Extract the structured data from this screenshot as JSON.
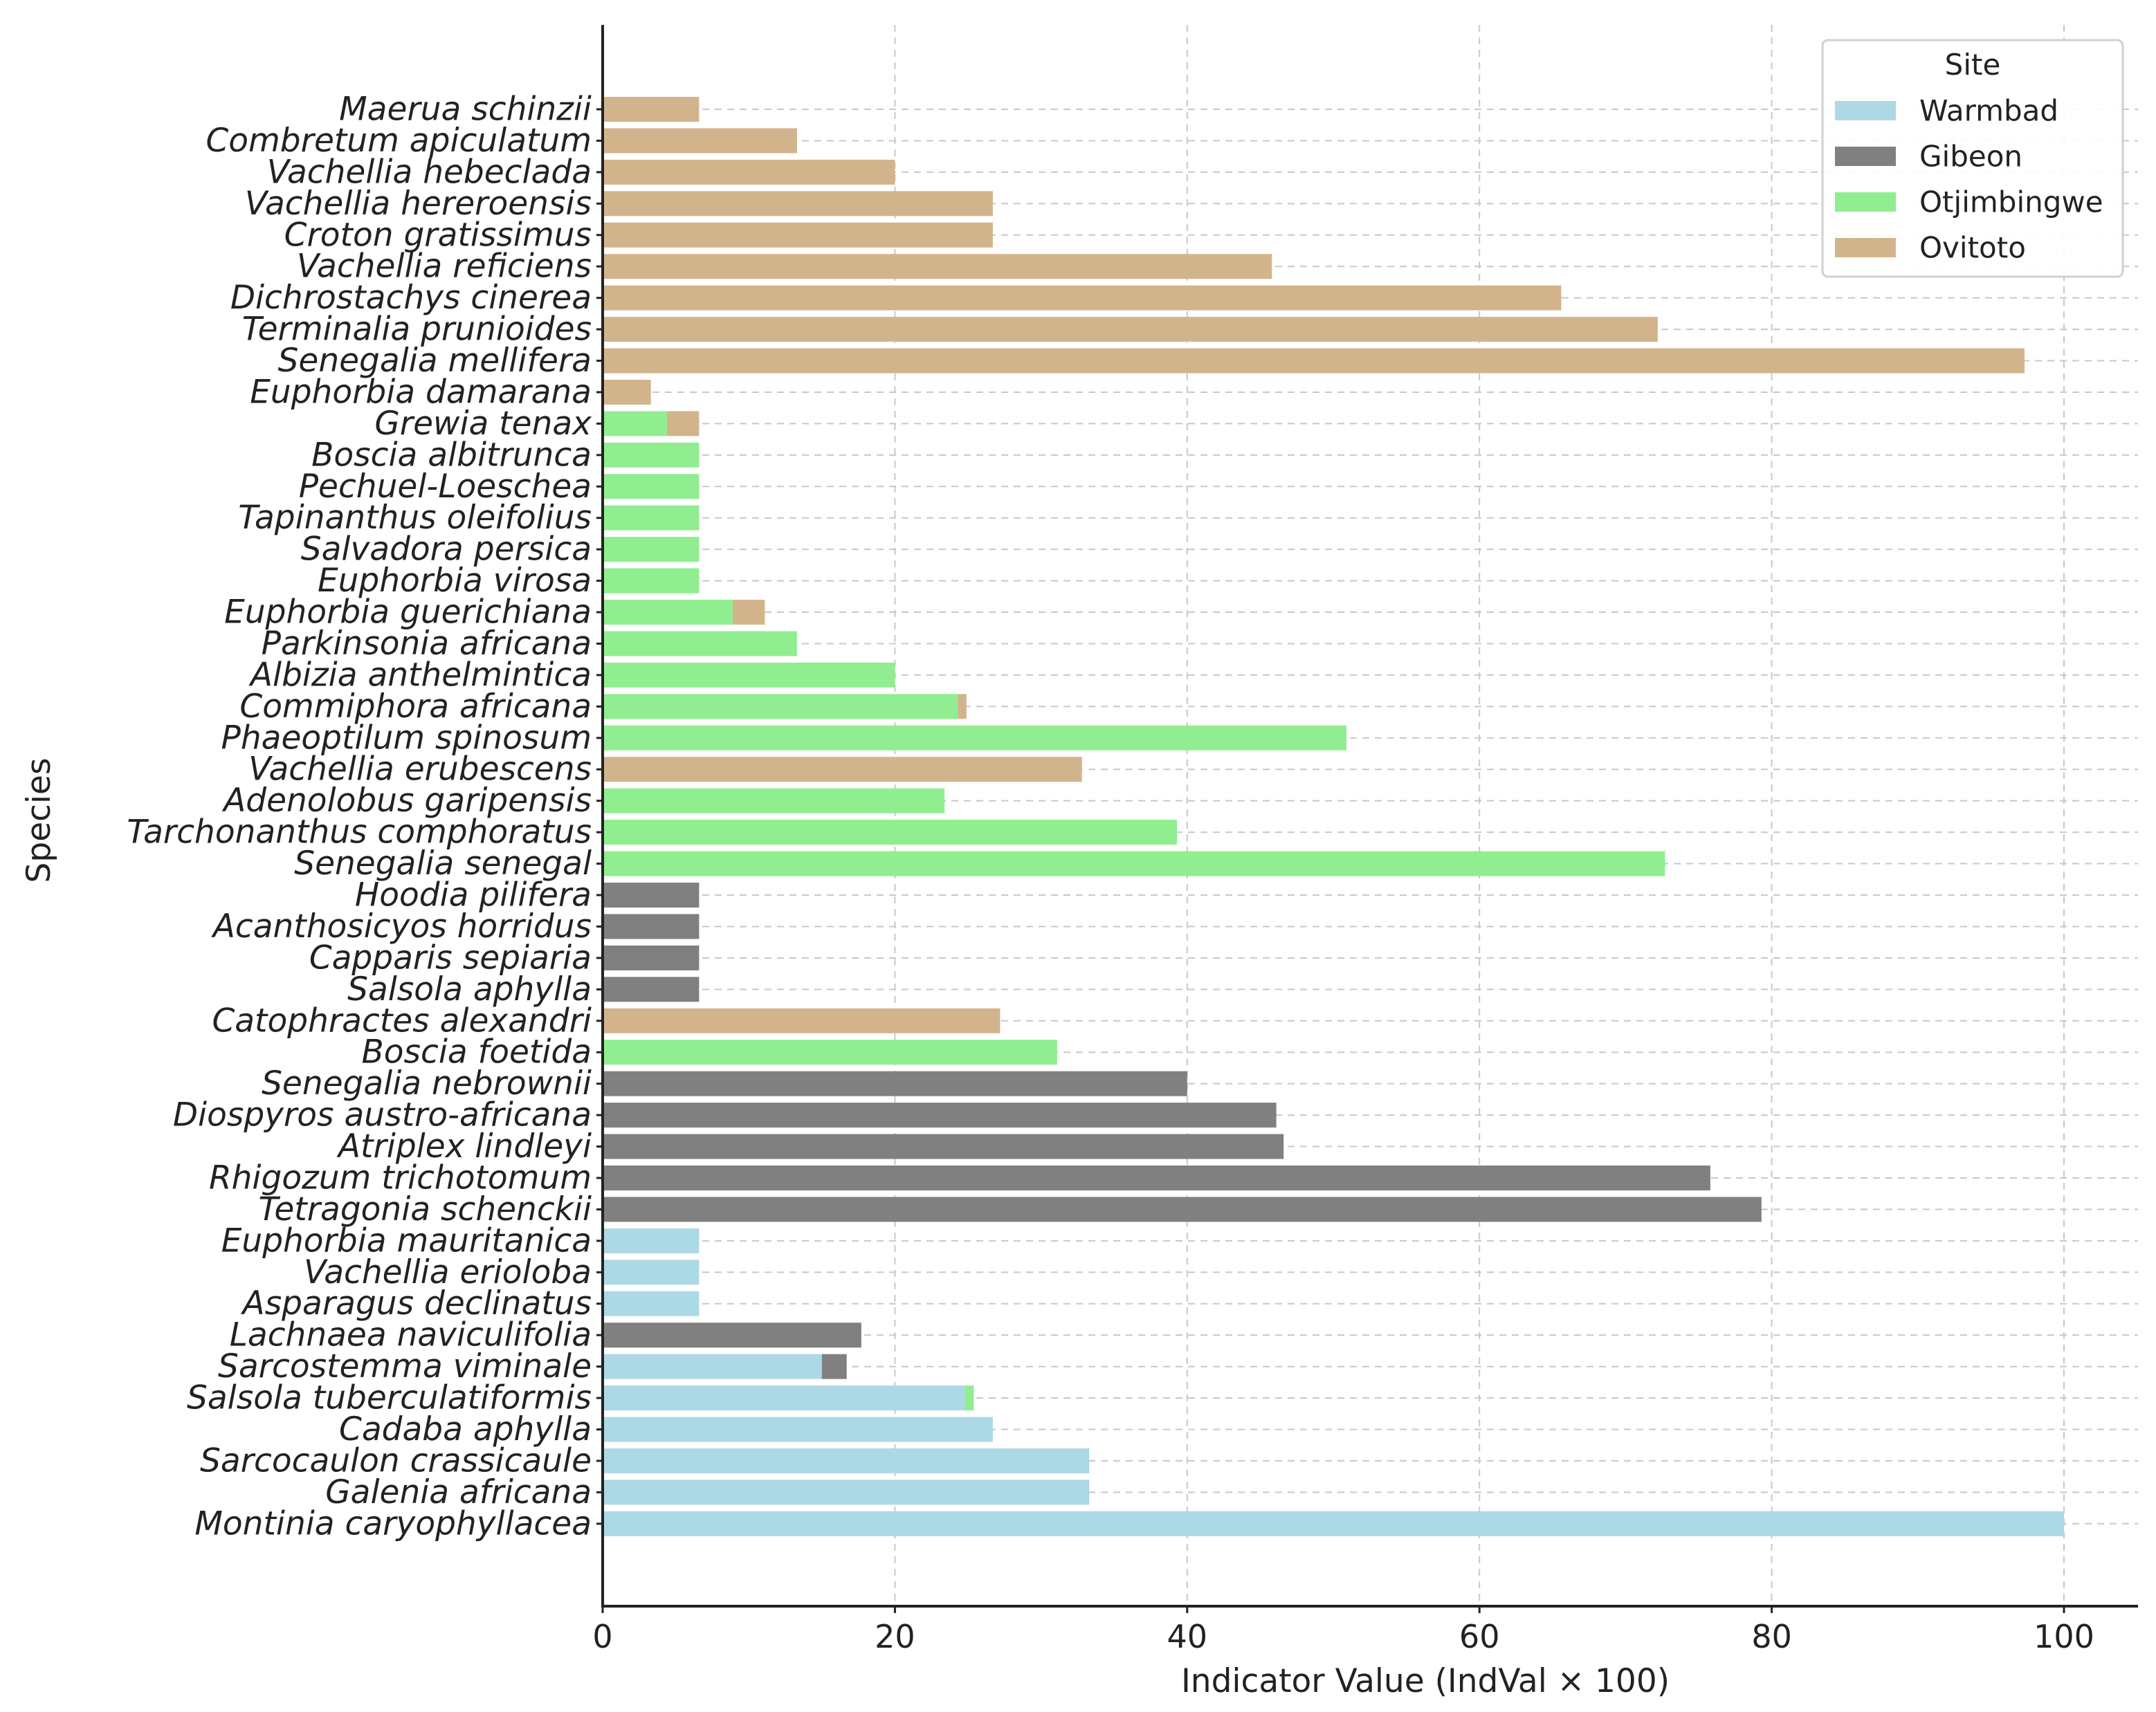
{
  "chart_data": {
    "type": "bar",
    "orientation": "horizontal",
    "stacked": true,
    "title": "",
    "xlabel": "Indicator Value (IndVal × 100)",
    "ylabel": "Species",
    "xlim": [
      0,
      105
    ],
    "xticks": [
      0,
      20,
      40,
      60,
      80,
      100
    ],
    "grid": true,
    "legend": {
      "title": "Site",
      "position": "top-right",
      "entries": [
        {
          "name": "Warmbad",
          "color": "#add8e6"
        },
        {
          "name": "Gibeon",
          "color": "#808080"
        },
        {
          "name": "Otjimbingwe",
          "color": "#90ee90"
        },
        {
          "name": "Ovitoto",
          "color": "#d2b48c"
        }
      ]
    },
    "categories": [
      "Maerua schinzii",
      "Combretum apiculatum",
      "Vachellia hebeclada",
      "Vachellia hereroensis",
      "Croton gratissimus",
      "Vachellia reficiens",
      "Dichrostachys cinerea",
      "Terminalia prunioides",
      "Senegalia mellifera",
      "Euphorbia damarana",
      "Grewia tenax",
      "Boscia albitrunca",
      "Pechuel-Loeschea",
      "Tapinanthus oleifolius",
      "Salvadora persica",
      "Euphorbia virosa",
      "Euphorbia guerichiana",
      "Parkinsonia africana",
      "Albizia anthelmintica",
      "Commiphora africana",
      "Phaeoptilum spinosum",
      "Vachellia erubescens",
      "Adenolobus garipensis",
      "Tarchonanthus comphoratus",
      "Senegalia senegal",
      "Hoodia pilifera",
      "Acanthosicyos horridus",
      "Capparis sepiaria",
      "Salsola aphylla",
      "Catophractes alexandri",
      "Boscia foetida",
      "Senegalia nebrownii",
      "Diospyros austro-africana",
      "Atriplex lindleyi",
      "Rhigozum trichotomum",
      "Tetragonia schenckii",
      "Euphorbia mauritanica",
      "Vachellia erioloba",
      "Asparagus declinatus",
      "Lachnaea naviculifolia",
      "Sarcostemma viminale",
      "Salsola tuberculatiformis",
      "Cadaba aphylla",
      "Sarcocaulon crassicaule",
      "Galenia africana",
      "Montinia caryophyllacea"
    ],
    "series": [
      {
        "name": "Warmbad",
        "values": [
          0,
          0,
          0,
          0,
          0,
          0,
          0,
          0,
          0,
          0,
          0,
          0,
          0,
          0,
          0,
          0,
          0,
          0,
          0,
          0,
          0,
          0,
          0,
          0,
          0,
          0,
          0,
          0,
          0,
          0,
          0,
          0,
          0,
          0,
          0,
          0,
          6.6,
          6.6,
          6.6,
          0,
          15,
          24.8,
          26.7,
          33.3,
          33.3,
          100
        ]
      },
      {
        "name": "Gibeon",
        "values": [
          0,
          0,
          0,
          0,
          0,
          0,
          0,
          0,
          0,
          0,
          0,
          0,
          0,
          0,
          0,
          0,
          0,
          0,
          0,
          0,
          0,
          0,
          0,
          0,
          0,
          6.6,
          6.6,
          6.6,
          6.6,
          0,
          0,
          40,
          46.1,
          46.6,
          75.8,
          79.3,
          0,
          0,
          0,
          17.7,
          1.7,
          0,
          0,
          0,
          0,
          0
        ]
      },
      {
        "name": "Otjimbingwe",
        "values": [
          0,
          0,
          0,
          0,
          0,
          0,
          0,
          0,
          0,
          0,
          4.4,
          6.6,
          6.6,
          6.6,
          6.6,
          6.6,
          8.9,
          13.3,
          20,
          24.3,
          50.9,
          0,
          23.4,
          39.3,
          72.7,
          0,
          0,
          0,
          0,
          0,
          31.1,
          0,
          0,
          0,
          0,
          0,
          0,
          0,
          0,
          0,
          0,
          0.6,
          0,
          0,
          0,
          0
        ]
      },
      {
        "name": "Ovitoto",
        "values": [
          6.6,
          13.3,
          20,
          26.7,
          26.7,
          45.8,
          65.6,
          72.2,
          97.3,
          3.3,
          2.2,
          0,
          0,
          0,
          0,
          0,
          2.2,
          0,
          0,
          0.6,
          0,
          32.8,
          0,
          0,
          0,
          0,
          0,
          0,
          0,
          27.2,
          0,
          0,
          0,
          0,
          0,
          0,
          0,
          0,
          0,
          0,
          0,
          0,
          0,
          0,
          0,
          0
        ]
      }
    ]
  }
}
